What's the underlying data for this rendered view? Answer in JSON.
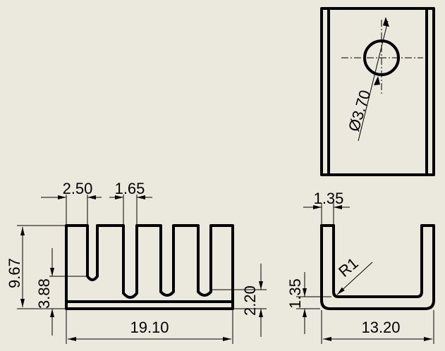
{
  "background_color": "#ebe9de",
  "line_color": "#000000",
  "views": {
    "top": {
      "hole_diameter_label": "Ø3.70"
    },
    "front": {
      "fin_pitch_label": "2.50",
      "fin_gap_label": "1.65",
      "overall_height_label": "9.67",
      "slot_depth_label": "3.88",
      "base_height_label": "2.20",
      "overall_width_label": "19.10"
    },
    "side": {
      "wall_thickness_top_label": "1.35",
      "wall_thickness_side_label": "1.35",
      "bend_radius_label": "R1",
      "overall_width_label": "13.20"
    }
  }
}
